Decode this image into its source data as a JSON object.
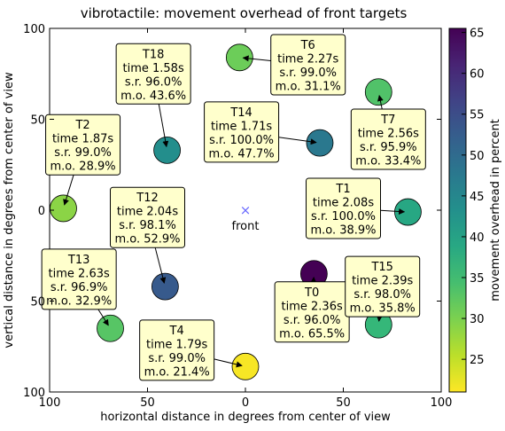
{
  "chart_data": {
    "type": "scatter",
    "title": "vibrotactile: movement overhead of front targets",
    "xlabel": "horizontal distance in degrees from center of view",
    "ylabel": "vertical distance in degrees from center of view",
    "xlim": [
      100,
      -100
    ],
    "ylim": [
      -100,
      100
    ],
    "x_ticks": [
      100,
      50,
      0,
      50,
      100
    ],
    "y_ticks": [
      100,
      50,
      0,
      50,
      100
    ],
    "x_tick_values": [
      100,
      50,
      0,
      -50,
      -100
    ],
    "y_tick_values": [
      100,
      50,
      0,
      -50,
      -100
    ],
    "grid": false,
    "colorbar": {
      "label": "movement overhead in percent",
      "min": 21,
      "max": 65.5,
      "ticks": [
        25,
        30,
        35,
        40,
        45,
        50,
        55,
        60,
        65
      ],
      "colormap": "viridis-reversed"
    },
    "center_marker": {
      "label": "front",
      "x": 0,
      "y": 0,
      "symbol": "×",
      "color": "#6a6aff"
    },
    "targets": [
      {
        "name": "T0",
        "x": -35,
        "y": -35,
        "time": "2.36s",
        "sr": "96.0%",
        "mo": 65.5,
        "mo_text": "65.5%",
        "box": {
          "x": -34,
          "y": -56
        }
      },
      {
        "name": "T1",
        "x": -83,
        "y": -1,
        "time": "2.08s",
        "sr": "100.0%",
        "mo": 38.9,
        "mo_text": "38.9%",
        "box": {
          "x": -50,
          "y": 1
        }
      },
      {
        "name": "T2",
        "x": 93,
        "y": 1,
        "time": "1.87s",
        "sr": "99.0%",
        "mo": 28.9,
        "mo_text": "28.9%",
        "box": {
          "x": 83,
          "y": 36
        }
      },
      {
        "name": "T4",
        "x": 0,
        "y": -86,
        "time": "1.79s",
        "sr": "99.0%",
        "mo": 21.4,
        "mo_text": "21.4%",
        "box": {
          "x": 35,
          "y": -77
        }
      },
      {
        "name": "T6",
        "x": 3,
        "y": 84,
        "time": "2.27s",
        "sr": "99.0%",
        "mo": 31.1,
        "mo_text": "31.1%",
        "box": {
          "x": -32,
          "y": 80
        }
      },
      {
        "name": "T7",
        "x": -68,
        "y": 65,
        "time": "2.56s",
        "sr": "95.9%",
        "mo": 33.4,
        "mo_text": "33.4%",
        "box": {
          "x": -73,
          "y": 39
        }
      },
      {
        "name": "T12",
        "x": 41,
        "y": -42,
        "time": "2.04s",
        "sr": "98.1%",
        "mo": 52.9,
        "mo_text": "52.9%",
        "box": {
          "x": 50,
          "y": -4
        }
      },
      {
        "name": "T13",
        "x": 69,
        "y": -65,
        "time": "2.63s",
        "sr": "96.9%",
        "mo": 32.9,
        "mo_text": "32.9%",
        "box": {
          "x": 85,
          "y": -38
        }
      },
      {
        "name": "T14",
        "x": -38,
        "y": 37,
        "time": "1.71s",
        "sr": "100.0%",
        "mo": 47.7,
        "mo_text": "47.7%",
        "box": {
          "x": 2,
          "y": 43
        }
      },
      {
        "name": "T15",
        "x": -68,
        "y": -63,
        "time": "2.39s",
        "sr": "98.0%",
        "mo": 35.8,
        "mo_text": "35.8%",
        "box": {
          "x": -70,
          "y": -42
        }
      },
      {
        "name": "T18",
        "x": 40,
        "y": 33,
        "time": "1.58s",
        "sr": "96.0%",
        "mo": 43.6,
        "mo_text": "43.6%",
        "box": {
          "x": 47,
          "y": 75
        }
      }
    ]
  }
}
